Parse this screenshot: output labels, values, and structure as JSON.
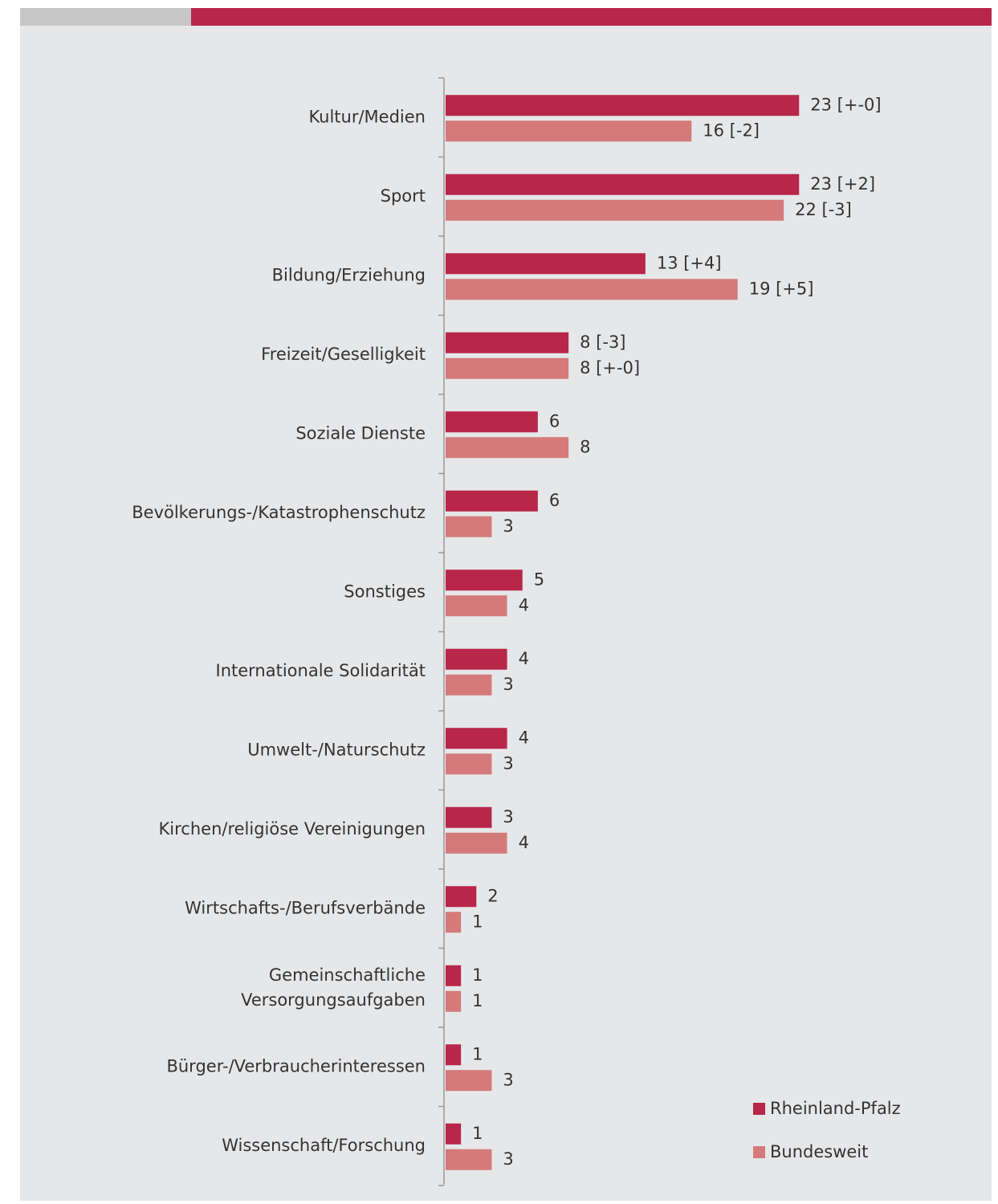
{
  "chart_data": {
    "type": "bar",
    "orientation": "horizontal",
    "categories": [
      "Kultur/Medien",
      "Sport",
      "Bildung/Erziehung",
      "Freizeit/Geselligkeit",
      "Soziale Dienste",
      "Bevölkerungs-/Katastrophenschutz",
      "Sonstiges",
      "Internationale Solidarität",
      "Umwelt-/Naturschutz",
      "Kirchen/religiöse Vereinigungen",
      "Wirtschafts-/Berufsverbände",
      "Gemeinschaftliche\nVersorgungsaufgaben",
      "Bürger-/Verbraucherinteressen",
      "Wissenschaft/Forschung"
    ],
    "series": [
      {
        "name": "Rheinland-Pfalz",
        "color": "#b8264a",
        "values": [
          23,
          23,
          13,
          8,
          6,
          6,
          5,
          4,
          4,
          3,
          2,
          1,
          1,
          1
        ],
        "value_labels": [
          "23 [+-0]",
          "23 [+2]",
          "13 [+4]",
          "8 [-3]",
          "6",
          "6",
          "5",
          "4",
          "4",
          "3",
          "2",
          "1",
          "1",
          "1"
        ]
      },
      {
        "name": "Bundesweit",
        "color": "#d47a7a",
        "values": [
          16,
          22,
          19,
          8,
          8,
          3,
          4,
          3,
          3,
          4,
          1,
          1,
          3,
          3
        ],
        "value_labels": [
          "16 [-2]",
          "22 [-3]",
          "19 [+5]",
          "8 [+-0]",
          "8",
          "3",
          "4",
          "3",
          "3",
          "4",
          "1",
          "1",
          "3",
          "3"
        ]
      }
    ],
    "xlim": [
      0,
      35
    ],
    "legend": "bottom-right"
  }
}
